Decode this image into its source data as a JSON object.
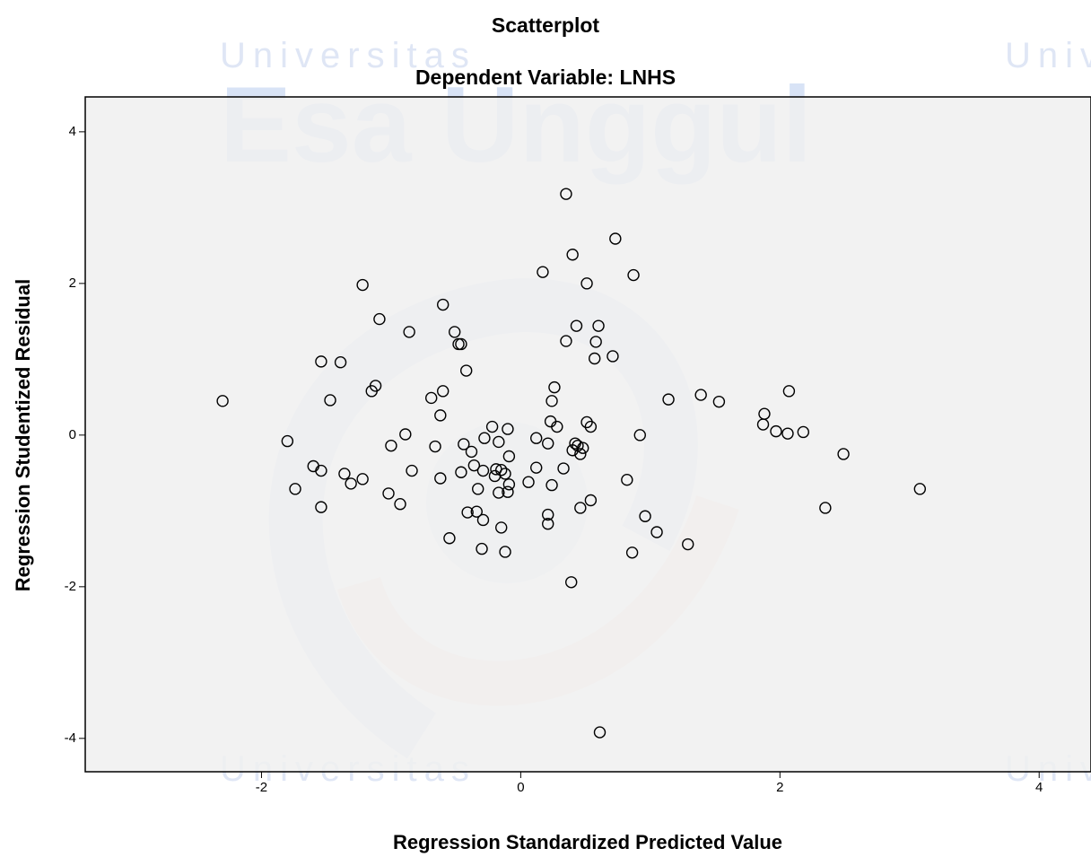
{
  "chart_data": {
    "type": "scatter",
    "title": "Scatterplot",
    "subtitle": "Dependent Variable: LNHS",
    "x_label": "Regression Standardized Predicted Value",
    "y_label": "Regression Studentized Residual",
    "watermark": {
      "line1": "Universitas",
      "line2": "Esa Unggul"
    },
    "marker_color": "#000000",
    "plot_background": "#f0f0f0",
    "xlim": [
      -3.36,
      4.4
    ],
    "ylim": [
      -4.44,
      4.46
    ],
    "xticks": [
      -2,
      0,
      2,
      4
    ],
    "yticks": [
      -4,
      -2,
      0,
      2,
      4
    ],
    "x": [
      -2.3,
      -1.8,
      -1.74,
      -1.6,
      -1.54,
      -1.54,
      -1.54,
      -1.47,
      -1.39,
      -1.36,
      -1.31,
      -1.22,
      -1.22,
      -1.15,
      -1.12,
      -1.09,
      -1.02,
      -1.0,
      -0.93,
      -0.89,
      -0.86,
      -0.84,
      -0.69,
      -0.66,
      -0.62,
      -0.62,
      -0.6,
      -0.6,
      -0.55,
      -0.51,
      -0.48,
      -0.46,
      -0.46,
      -0.44,
      -0.42,
      -0.41,
      -0.38,
      -0.36,
      -0.34,
      -0.33,
      -0.3,
      -0.29,
      -0.29,
      -0.28,
      -0.22,
      -0.2,
      -0.19,
      -0.17,
      -0.17,
      -0.15,
      -0.15,
      -0.12,
      -0.12,
      -0.1,
      -0.1,
      -0.09,
      -0.09,
      0.06,
      0.12,
      0.12,
      0.17,
      0.21,
      0.21,
      0.21,
      0.23,
      0.24,
      0.24,
      0.26,
      0.28,
      0.33,
      0.35,
      0.35,
      0.39,
      0.4,
      0.4,
      0.42,
      0.43,
      0.44,
      0.46,
      0.46,
      0.48,
      0.51,
      0.51,
      0.54,
      0.54,
      0.57,
      0.58,
      0.6,
      0.61,
      0.71,
      0.73,
      0.82,
      0.86,
      0.87,
      0.92,
      0.96,
      1.05,
      1.14,
      1.29,
      1.39,
      1.53,
      1.87,
      1.88,
      1.97,
      2.06,
      2.07,
      2.18,
      2.35,
      2.49,
      3.08
    ],
    "values": [
      0.45,
      -0.08,
      -0.71,
      -0.41,
      -0.47,
      0.97,
      -0.95,
      0.46,
      0.96,
      -0.51,
      -0.64,
      -0.58,
      1.98,
      0.58,
      0.65,
      1.53,
      -0.77,
      -0.14,
      -0.91,
      0.01,
      1.36,
      -0.47,
      0.49,
      -0.15,
      0.26,
      -0.57,
      0.58,
      1.72,
      -1.36,
      1.36,
      1.2,
      1.2,
      -0.49,
      -0.12,
      0.85,
      -1.02,
      -0.22,
      -0.4,
      -1.01,
      -0.71,
      -1.5,
      -1.12,
      -0.47,
      -0.04,
      0.11,
      -0.54,
      -0.45,
      -0.76,
      -0.09,
      -0.46,
      -1.22,
      -1.54,
      -0.51,
      -0.75,
      0.08,
      -0.65,
      -0.28,
      -0.62,
      -0.04,
      -0.43,
      2.15,
      -0.11,
      -1.05,
      -1.17,
      0.18,
      0.45,
      -0.66,
      0.63,
      0.11,
      -0.44,
      3.18,
      1.24,
      -1.94,
      -0.2,
      2.38,
      -0.11,
      1.44,
      -0.14,
      -0.25,
      -0.96,
      -0.17,
      2.0,
      0.17,
      -0.86,
      0.11,
      1.01,
      1.23,
      1.44,
      -3.92,
      1.04,
      2.59,
      -0.59,
      -1.55,
      2.11,
      0.0,
      -1.07,
      -1.28,
      0.47,
      -1.44,
      0.53,
      0.44,
      0.14,
      0.28,
      0.05,
      0.02,
      0.58,
      0.04,
      -0.96,
      -0.25,
      -0.71
    ]
  }
}
